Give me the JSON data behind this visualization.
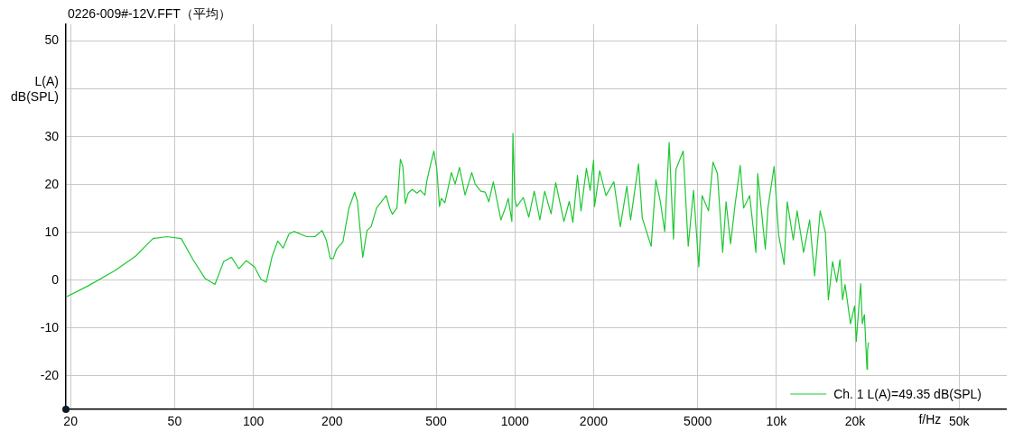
{
  "chart_data": {
    "type": "line",
    "title": "0226-009#-12V.FFT（平均）",
    "xlabel": "f/Hz",
    "ylabel": "L(A) dB(SPL)",
    "log": "x",
    "grid": true,
    "legend": "bottom right",
    "marker": "none",
    "line_style": "solid",
    "xlim": [
      19.2,
      76000
    ],
    "ylim": [
      -27,
      53.5
    ],
    "xticks": [
      20,
      50,
      100,
      200,
      500,
      1000,
      2000,
      5000,
      {
        "value": 10000,
        "label": "10k"
      },
      {
        "value": 20000,
        "label": "20k"
      },
      {
        "value": 50000,
        "label": "50k"
      }
    ],
    "yticks": [
      -20,
      -10,
      0,
      10,
      20,
      30,
      {
        "value": 40,
        "label": null
      },
      50
    ],
    "series": [
      {
        "name": "Ch. 1 L(A)=49.35 dB(SPL)",
        "color": "#1ec832",
        "x": [
          19.2,
          23.5,
          29.5,
          35.4,
          41.3,
          46.8,
          53,
          58.8,
          65.3,
          71.3,
          77,
          82.5,
          88,
          93.9,
          101,
          107,
          112,
          118,
          124,
          130,
          137,
          143,
          160,
          172,
          183,
          190,
          197,
          202,
          208,
          220,
          232,
          244,
          250,
          262,
          272,
          282,
          296,
          322,
          333,
          340,
          354,
          365,
          373,
          381,
          391,
          405,
          422,
          435,
          453,
          460,
          474,
          490,
          503,
          515,
          523,
          540,
          572,
          591,
          614,
          645,
          684,
          705,
          741,
          770,
          795,
          827,
          884,
          919,
          943,
          974,
          983,
          1000,
          1016,
          1077,
          1130,
          1186,
          1246,
          1300,
          1375,
          1433,
          1540,
          1615,
          1666,
          1735,
          1790,
          1877,
          1940,
          2000,
          2016,
          2110,
          2230,
          2390,
          2530,
          2680,
          2770,
          2970,
          3070,
          3320,
          3460,
          3600,
          3740,
          3890,
          4040,
          4130,
          4400,
          4600,
          4820,
          5050,
          5200,
          5500,
          5720,
          5950,
          6230,
          6420,
          6680,
          6950,
          7270,
          7490,
          7900,
          8350,
          8480,
          9070,
          9280,
          9800,
          10200,
          10700,
          11000,
          11600,
          12000,
          12700,
          13400,
          14000,
          14700,
          15400,
          15800,
          16400,
          17000,
          17500,
          17900,
          18300,
          19200,
          19900,
          20200,
          20600,
          21000,
          21300,
          21700,
          22200,
          22300,
          22500
        ],
        "values": [
          -3.5,
          -1.1,
          2.0,
          5.0,
          8.7,
          9.1,
          8.7,
          4.3,
          0.4,
          -0.9,
          3.9,
          4.8,
          2.4,
          4.1,
          2.8,
          0.2,
          -0.4,
          5.0,
          8.2,
          6.7,
          9.7,
          10.2,
          9.1,
          9.1,
          10.4,
          8.4,
          4.5,
          4.5,
          6.5,
          8.0,
          15.1,
          18.4,
          16.5,
          4.8,
          10.4,
          11.2,
          15.1,
          17.7,
          14.9,
          13.8,
          15.1,
          25.3,
          23.8,
          16.0,
          18.2,
          19.0,
          18.2,
          18.8,
          17.8,
          20.6,
          23.8,
          27.0,
          23.2,
          15.4,
          17.1,
          16.2,
          22.5,
          20.1,
          23.6,
          17.8,
          22.5,
          20.1,
          18.6,
          18.4,
          16.4,
          20.6,
          12.6,
          15.1,
          17.1,
          12.3,
          30.7,
          16.9,
          15.4,
          17.3,
          13.2,
          18.6,
          12.6,
          18.6,
          13.9,
          20.4,
          12.3,
          16.5,
          12.1,
          21.9,
          14.5,
          23.4,
          18.8,
          25.1,
          15.4,
          22.9,
          17.7,
          20.6,
          11.2,
          19.7,
          12.6,
          24.3,
          13.0,
          7.1,
          21.0,
          16.4,
          10.2,
          28.8,
          8.6,
          23.2,
          27.0,
          7.1,
          18.8,
          2.8,
          17.7,
          14.5,
          24.7,
          22.3,
          5.8,
          16.4,
          7.6,
          15.8,
          24.0,
          15.1,
          17.7,
          5.8,
          22.3,
          6.5,
          15.1,
          23.8,
          9.5,
          3.3,
          16.4,
          8.4,
          14.5,
          5.8,
          12.6,
          0.9,
          14.5,
          9.9,
          -4.1,
          3.9,
          -0.4,
          4.3,
          -4.1,
          -0.9,
          -9.1,
          -5.4,
          -12.8,
          -6.5,
          -0.7,
          -9.1,
          -7.2,
          -18.6,
          -14.7,
          -13.0
        ]
      }
    ]
  }
}
